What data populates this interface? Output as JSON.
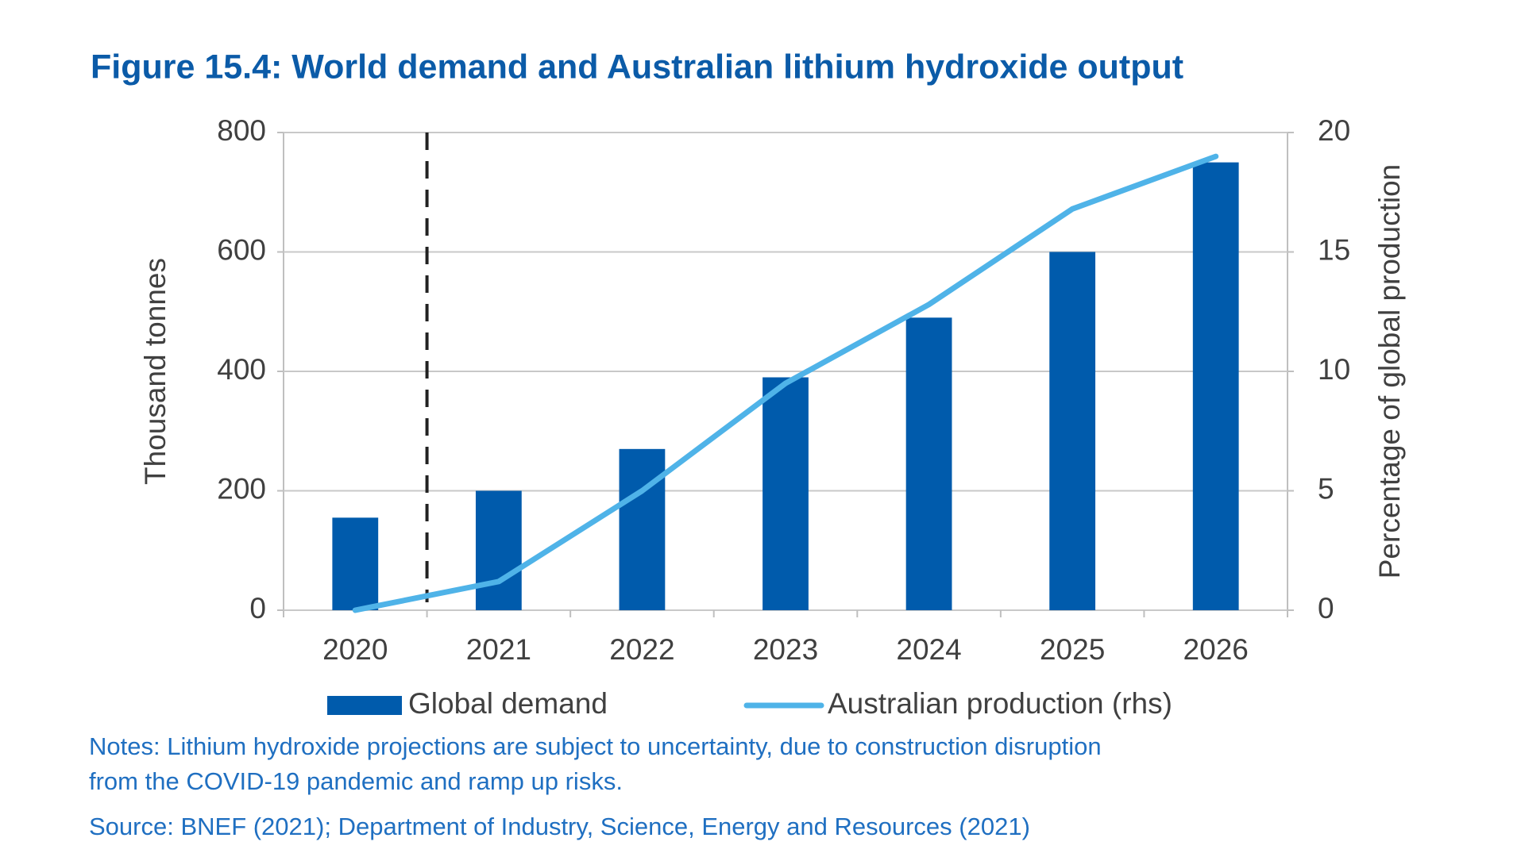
{
  "chart_data": {
    "type": "bar_line",
    "title": "Figure 15.4: World demand and Australian lithium hydroxide output",
    "categories": [
      "2020",
      "2021",
      "2022",
      "2023",
      "2024",
      "2025",
      "2026"
    ],
    "series": [
      {
        "name": "Global demand",
        "type": "bar",
        "color": "#005bac",
        "values": [
          155,
          200,
          270,
          390,
          490,
          600,
          750
        ]
      },
      {
        "name": "Australian production (rhs)",
        "type": "line",
        "axis": "y2",
        "color": "#4fb3e8",
        "values": [
          0,
          1.2,
          5,
          9.5,
          12.8,
          16.8,
          19
        ]
      }
    ],
    "ylabel": "Thousand tonnes",
    "y2label": "Percentage of global production",
    "ylim": [
      0,
      800
    ],
    "yticks": [
      0,
      200,
      400,
      600,
      800
    ],
    "y2lim": [
      0,
      20
    ],
    "y2ticks": [
      0,
      5,
      10,
      15,
      20
    ],
    "grid": true,
    "notes": [
      "Notes: Lithium hydroxide projections are subject to uncertainty, due to construction disruption",
      "from the COVID-19 pandemic and ramp up risks."
    ],
    "source": "Source: BNEF (2021); Department of Industry, Science, Energy and Resources (2021)"
  }
}
